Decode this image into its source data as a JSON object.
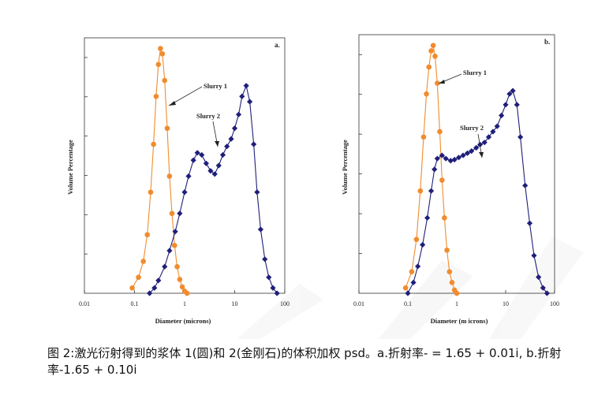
{
  "chart_data": [
    {
      "type": "line",
      "panel_label": "a.",
      "xlabel": "Diameter (microns)",
      "ylabel": "Volume Percentage",
      "xscale": "log",
      "xlim": [
        0.01,
        100
      ],
      "x_ticks": [
        "0.01",
        "0.1",
        "1",
        "10",
        "100"
      ],
      "grid": false,
      "series": [
        {
          "annotation": "Slurry 1",
          "marker": "circle",
          "color": "#f08c2e",
          "x": [
            0.09,
            0.12,
            0.15,
            0.18,
            0.21,
            0.24,
            0.27,
            0.3,
            0.33,
            0.36,
            0.4,
            0.45,
            0.5,
            0.56,
            0.63,
            0.71,
            0.8,
            0.9,
            1.0,
            1.12
          ],
          "y": [
            0.5,
            1.5,
            3.0,
            5.5,
            9.5,
            14.0,
            18.5,
            21.5,
            23.0,
            22.5,
            20.0,
            15.5,
            11.0,
            7.5,
            4.5,
            2.5,
            1.3,
            0.6,
            0.2,
            0.0
          ]
        },
        {
          "annotation": "Slurry 2",
          "marker": "diamond",
          "color": "#1f1f7a",
          "x": [
            0.2,
            0.25,
            0.3,
            0.4,
            0.5,
            0.65,
            0.8,
            1.0,
            1.2,
            1.5,
            1.8,
            2.2,
            2.7,
            3.3,
            4.0,
            4.8,
            5.8,
            7.0,
            8.5,
            10,
            12,
            14,
            17,
            20,
            24,
            28,
            33,
            40,
            48,
            58,
            70
          ],
          "y": [
            0.0,
            0.5,
            1.2,
            2.5,
            4.0,
            5.8,
            7.5,
            9.5,
            11.0,
            12.5,
            13.2,
            13.0,
            12.2,
            11.5,
            11.2,
            12.0,
            13.0,
            13.8,
            14.5,
            15.5,
            16.8,
            18.5,
            19.5,
            18.0,
            14.0,
            9.5,
            6.0,
            3.2,
            1.5,
            0.5,
            0.0
          ]
        }
      ]
    },
    {
      "type": "line",
      "panel_label": "b.",
      "xlabel": "Diameter (m icrons)",
      "ylabel": "Volume Percentage",
      "xscale": "log",
      "xlim": [
        0.01,
        100
      ],
      "x_ticks": [
        "0.01",
        "0.1",
        "1",
        "10",
        "100"
      ],
      "grid": false,
      "series": [
        {
          "annotation": "Slurry 1",
          "marker": "circle",
          "color": "#f08c2e",
          "x": [
            0.09,
            0.12,
            0.15,
            0.18,
            0.21,
            0.24,
            0.27,
            0.3,
            0.33,
            0.36,
            0.4,
            0.45,
            0.5,
            0.56,
            0.63,
            0.71,
            0.8,
            0.9,
            1.0
          ],
          "y": [
            0.5,
            2.0,
            5.0,
            9.5,
            14.5,
            18.5,
            21.0,
            22.5,
            23.0,
            22.0,
            19.5,
            15.0,
            10.5,
            7.0,
            4.0,
            2.0,
            1.0,
            0.3,
            0.0
          ]
        },
        {
          "annotation": "Slurry 2",
          "marker": "diamond",
          "color": "#1f1f7a",
          "x": [
            0.1,
            0.13,
            0.16,
            0.2,
            0.25,
            0.3,
            0.35,
            0.4,
            0.5,
            0.6,
            0.75,
            0.9,
            1.1,
            1.35,
            1.65,
            2.0,
            2.5,
            3.0,
            3.7,
            4.5,
            5.5,
            6.7,
            8.2,
            10,
            12,
            14,
            17,
            20,
            25,
            31,
            38,
            47,
            58,
            70
          ],
          "y": [
            0.0,
            1.0,
            2.5,
            4.5,
            7.0,
            9.5,
            11.5,
            12.5,
            12.8,
            12.5,
            12.3,
            12.4,
            12.6,
            12.8,
            13.0,
            13.2,
            13.5,
            13.8,
            14.0,
            14.5,
            15.0,
            15.5,
            16.5,
            17.5,
            18.5,
            18.8,
            17.5,
            14.5,
            10.0,
            6.5,
            3.5,
            1.5,
            0.5,
            0.0
          ]
        }
      ]
    }
  ],
  "caption": "图 2:激光衍射得到的浆体 1(圆)和 2(金刚石)的体积加权 psd。a.折射率- = 1.65 + 0.01i, b.折射率-1.65 + 0.10i"
}
